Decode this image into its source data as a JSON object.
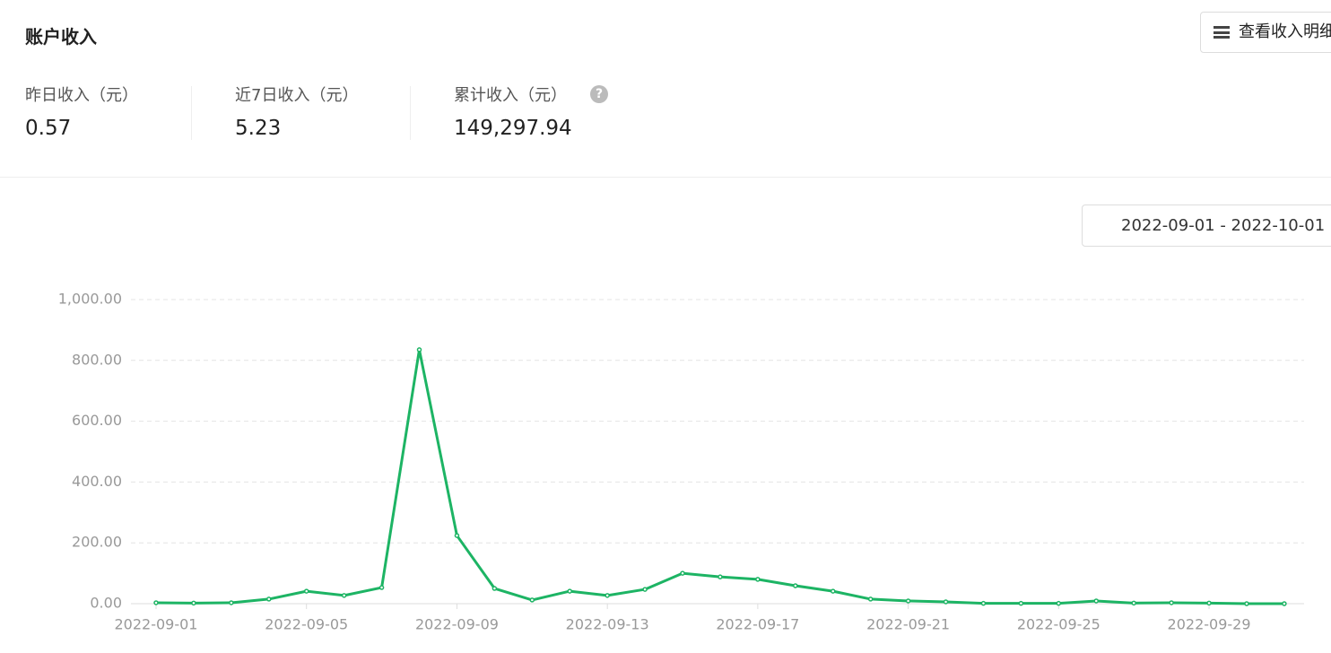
{
  "header": {
    "title": "账户收入",
    "button": "查看收入明细"
  },
  "stats": [
    {
      "label": "昨日收入（元）",
      "value": "0.57"
    },
    {
      "label": "近7日收入（元）",
      "value": "5.23"
    },
    {
      "label": "累计收入（元）",
      "value": "149,297.94"
    }
  ],
  "date_range": "2022-09-01 - 2022-10-01",
  "chart_data": {
    "type": "line",
    "categories": [
      "2022-09-01",
      null,
      null,
      null,
      "2022-09-05",
      null,
      null,
      null,
      "2022-09-09",
      null,
      null,
      null,
      "2022-09-13",
      null,
      null,
      null,
      "2022-09-17",
      null,
      null,
      null,
      "2022-09-21",
      null,
      null,
      null,
      "2022-09-25",
      null,
      null,
      null,
      "2022-09-29",
      null,
      null
    ],
    "series": [
      {
        "color": "#1db464",
        "values": [
          3,
          2,
          3,
          15,
          41,
          27,
          53,
          835,
          224,
          50,
          12,
          41,
          27,
          47,
          100,
          88,
          80,
          59,
          41,
          15,
          9,
          6,
          1,
          1,
          1,
          9,
          2,
          3,
          2,
          0,
          0
        ]
      }
    ],
    "ylim": [
      0,
      1000
    ],
    "yticks": [
      {
        "value": 0,
        "label": "0.00"
      },
      {
        "value": 200,
        "label": "200.00"
      },
      {
        "value": 400,
        "label": "400.00"
      },
      {
        "value": 600,
        "label": "600.00"
      },
      {
        "value": 800,
        "label": "800.00"
      },
      {
        "value": 1000,
        "label": "1,000.00"
      }
    ],
    "grid": true
  }
}
